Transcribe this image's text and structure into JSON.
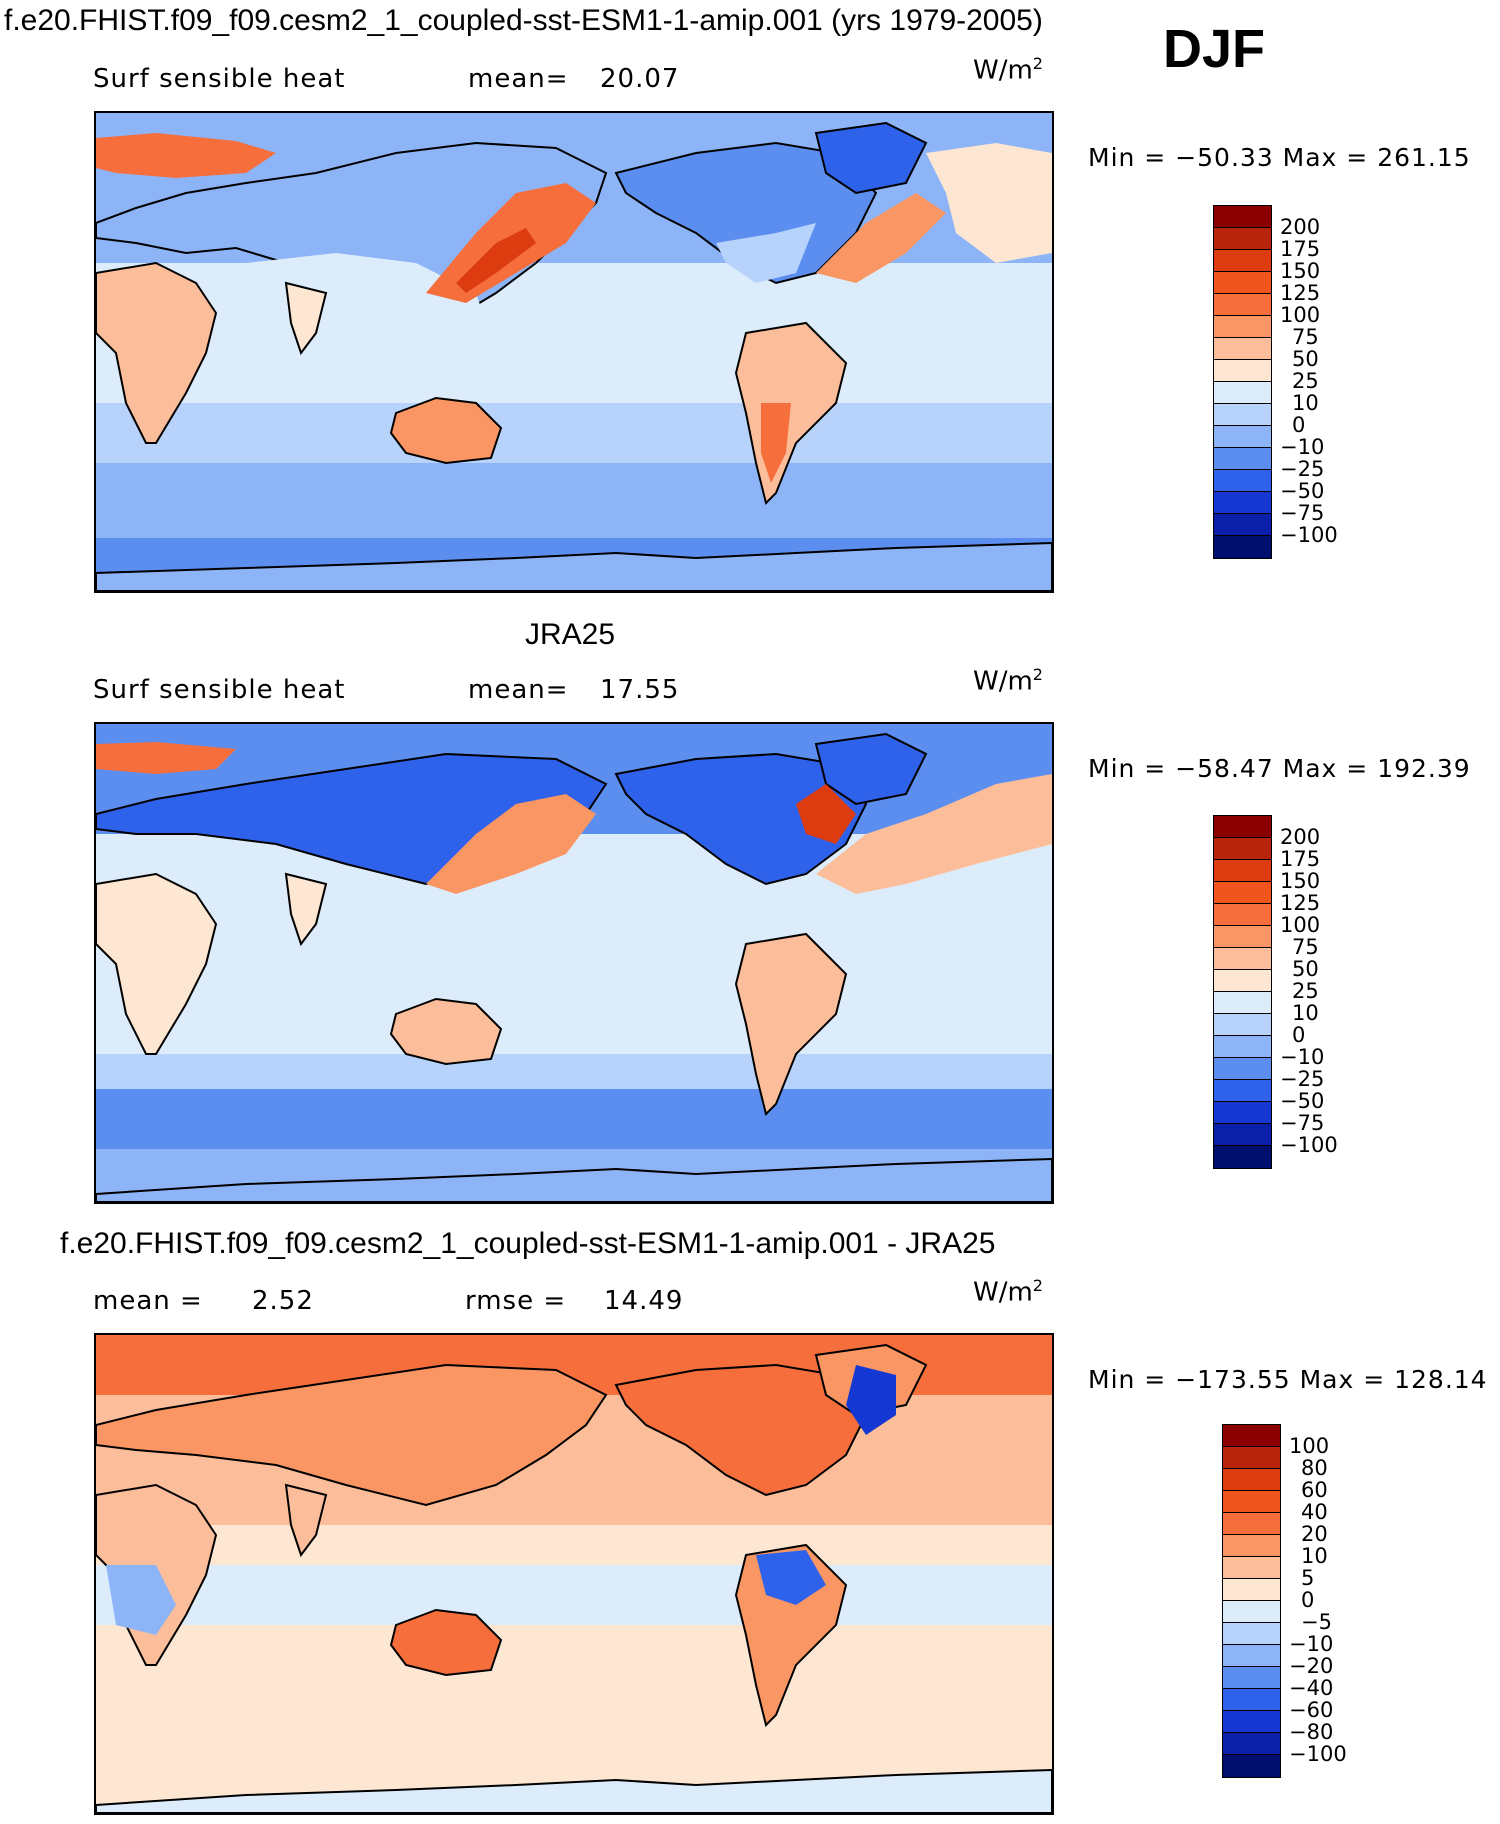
{
  "header": {
    "title": "f.e20.FHIST.f09_f09.cesm2_1_coupled-sst-ESM1-1-amip.001 (yrs 1979-2005)",
    "season": "DJF"
  },
  "panels": [
    {
      "title": "",
      "variable": "Surf  sensible  heat",
      "mean_label": "mean=",
      "mean": "20.07",
      "units": "W/m",
      "units_sup": "2",
      "minmax": "Min  =  −50.33  Max  =  261.15",
      "levels": [
        "200",
        "175",
        "150",
        "125",
        "100",
        "75",
        "50",
        "25",
        "10",
        "0",
        "−10",
        "−25",
        "−50",
        "−75",
        "−100"
      ],
      "colors": [
        "#8b0000",
        "#b8240c",
        "#dc3c10",
        "#f0551e",
        "#f56e3c",
        "#fa9664",
        "#fcbe9a",
        "#fde6d2",
        "#dcecfb",
        "#b7d3fb",
        "#8db4f7",
        "#5c8ef0",
        "#2f62ea",
        "#1638d2",
        "#0c1fa8",
        "#000f6e"
      ]
    },
    {
      "title": "JRA25",
      "variable": "Surf  sensible  heat",
      "mean_label": "mean=",
      "mean": "17.55",
      "units": "W/m",
      "units_sup": "2",
      "minmax": "Min  =  −58.47  Max  =  192.39",
      "levels": [
        "200",
        "175",
        "150",
        "125",
        "100",
        "75",
        "50",
        "25",
        "10",
        "0",
        "−10",
        "−25",
        "−50",
        "−75",
        "−100"
      ],
      "colors": [
        "#8b0000",
        "#b8240c",
        "#dc3c10",
        "#f0551e",
        "#f56e3c",
        "#fa9664",
        "#fcbe9a",
        "#fde6d2",
        "#dcecfb",
        "#b7d3fb",
        "#8db4f7",
        "#5c8ef0",
        "#2f62ea",
        "#1638d2",
        "#0c1fa8",
        "#000f6e"
      ]
    },
    {
      "title": "f.e20.FHIST.f09_f09.cesm2_1_coupled-sst-ESM1-1-amip.001 - JRA25",
      "mean_label": "mean =",
      "mean": "2.52",
      "rmse_label": "rmse =",
      "rmse": "14.49",
      "units": "W/m",
      "units_sup": "2",
      "minmax": "Min  =  −173.55  Max  =  128.14",
      "levels": [
        "100",
        "80",
        "60",
        "40",
        "20",
        "10",
        "5",
        "0",
        "−5",
        "−10",
        "−20",
        "−40",
        "−60",
        "−80",
        "−100"
      ],
      "colors": [
        "#8b0000",
        "#b8240c",
        "#dc3c10",
        "#f0551e",
        "#f56e3c",
        "#fa9664",
        "#fcbe9a",
        "#fde6d2",
        "#dcecfb",
        "#b7d3fb",
        "#8db4f7",
        "#5c8ef0",
        "#2f62ea",
        "#1638d2",
        "#0c1fa8",
        "#000f6e"
      ]
    }
  ]
}
